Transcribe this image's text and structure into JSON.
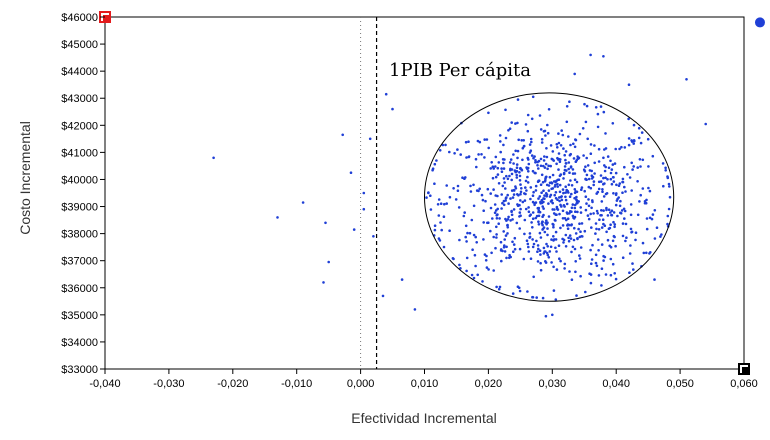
{
  "chart_data": {
    "type": "scatter",
    "xlabel": "Efectividad Incremental",
    "ylabel": "Costo Incremental",
    "xlim": [
      -0.04,
      0.06
    ],
    "ylim": [
      33000,
      46000
    ],
    "x_ticks": [
      "-0,040",
      "-0,030",
      "-0,020",
      "-0,010",
      "0,000",
      "0,010",
      "0,020",
      "0,030",
      "0,040",
      "0,050",
      "0,060"
    ],
    "y_ticks": [
      "$33000",
      "$34000",
      "$35000",
      "$36000",
      "$37000",
      "$38000",
      "$39000",
      "$40000",
      "$41000",
      "$42000",
      "$43000",
      "$44000",
      "$45000",
      "$46000"
    ],
    "annotation": "1PIB Per cápita",
    "threshold_line_x": 0.0025,
    "zero_line_x": 0.0,
    "ellipse": {
      "cx": 0.0295,
      "cy": 39350,
      "rx": 0.0195,
      "ry": 3850
    },
    "cloud": {
      "center_x": 0.03,
      "center_y": 39200,
      "sd_x": 0.0085,
      "sd_y": 1500,
      "count": 950
    },
    "markers": [
      {
        "name": "red-square",
        "x": -0.04,
        "y": 46000,
        "color": "#e31a1c"
      },
      {
        "name": "black-square",
        "x": 0.06,
        "y": 33000,
        "color": "#000000"
      },
      {
        "name": "blue-dot",
        "x": 0.0625,
        "y": 45800,
        "color": "#1f3fd6"
      }
    ],
    "outliers": [
      {
        "x": -0.023,
        "y": 40800
      },
      {
        "x": -0.013,
        "y": 38600
      },
      {
        "x": -0.009,
        "y": 39150
      },
      {
        "x": -0.0055,
        "y": 38400
      },
      {
        "x": -0.0058,
        "y": 36200
      },
      {
        "x": -0.005,
        "y": 36950
      },
      {
        "x": -0.0028,
        "y": 41650
      },
      {
        "x": -0.0015,
        "y": 40250
      },
      {
        "x": 0.0005,
        "y": 38900
      },
      {
        "x": 0.002,
        "y": 37900
      },
      {
        "x": 0.004,
        "y": 43150
      },
      {
        "x": 0.005,
        "y": 42600
      },
      {
        "x": 0.0035,
        "y": 35700
      },
      {
        "x": 0.0065,
        "y": 36300
      },
      {
        "x": 0.0085,
        "y": 35200
      },
      {
        "x": 0.0015,
        "y": 41500
      },
      {
        "x": 0.0005,
        "y": 39500
      },
      {
        "x": -0.001,
        "y": 38150
      },
      {
        "x": 0.036,
        "y": 44600
      },
      {
        "x": 0.038,
        "y": 44550
      },
      {
        "x": 0.051,
        "y": 43700
      },
      {
        "x": 0.042,
        "y": 43500
      },
      {
        "x": 0.054,
        "y": 42050
      },
      {
        "x": 0.029,
        "y": 34950
      },
      {
        "x": 0.03,
        "y": 35000
      },
      {
        "x": 0.046,
        "y": 36300
      },
      {
        "x": 0.0335,
        "y": 43900
      }
    ],
    "point_color": "#1f3fd6",
    "grid": false
  }
}
